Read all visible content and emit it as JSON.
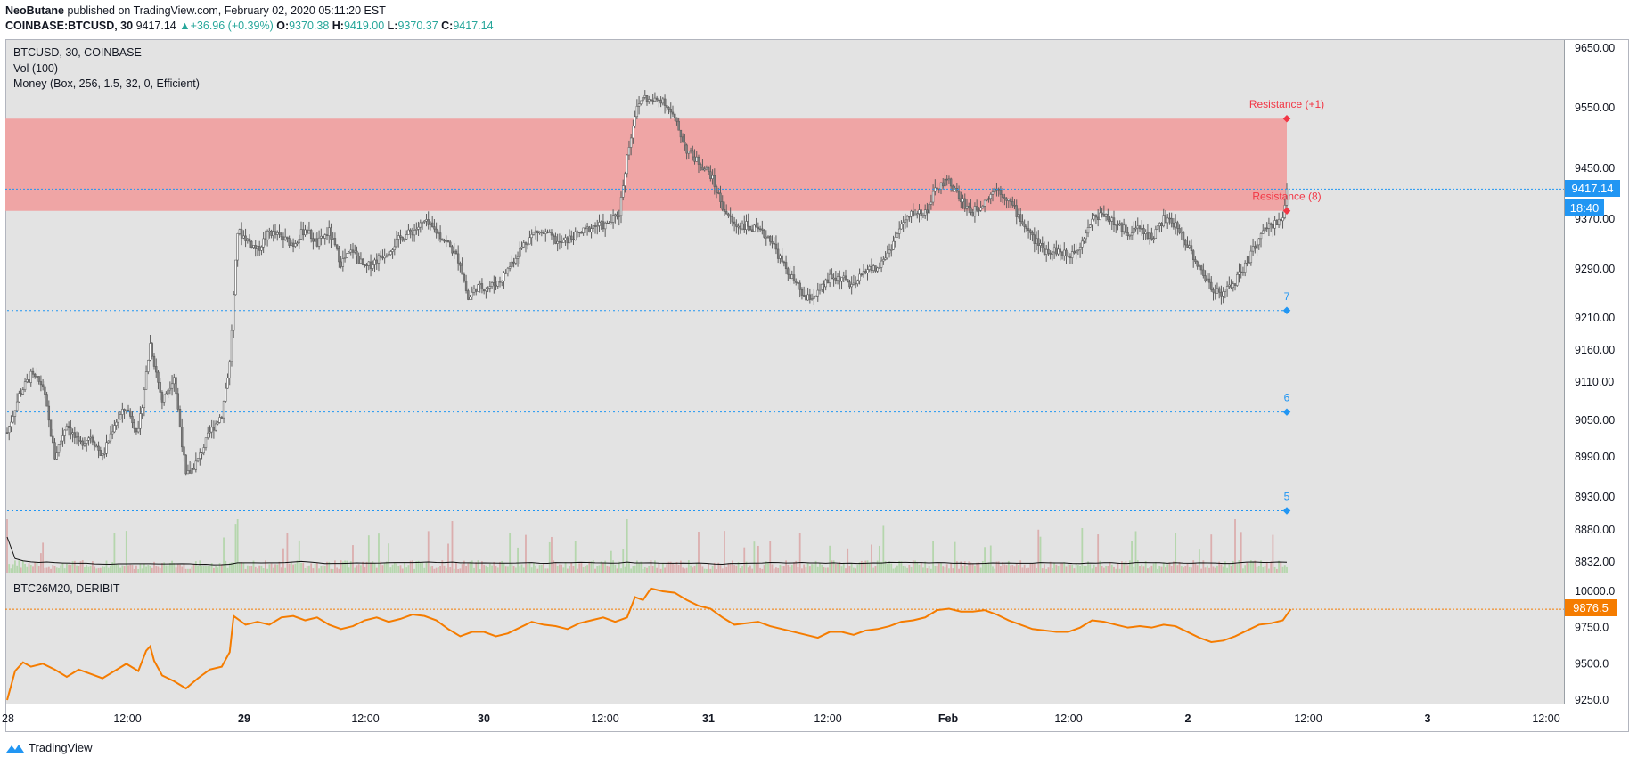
{
  "header": {
    "author": "NeoButane",
    "published_text": "published on TradingView.com, February 02, 2020 05:11:20 EST",
    "symbol": "COINBASE:BTCUSD, 30",
    "last": "9417.14",
    "change": "+36.96 (+0.39%)",
    "o_label": "O:",
    "o": "9370.38",
    "h_label": "H:",
    "h": "9419.00",
    "l_label": "L:",
    "l": "9370.37",
    "c_label": "C:",
    "c": "9417.14"
  },
  "legend": {
    "symbol": "BTCUSD, 30, COINBASE",
    "vol": "Vol (100)",
    "money": "Money (Box, 256, 1.5, 32, 0, Efficient)",
    "sub_symbol": "BTC26M20, DERIBIT"
  },
  "annotations": {
    "res_top": "Resistance (+1)",
    "res_8": "Resistance (8)",
    "lvl_7": "7",
    "lvl_6": "6",
    "lvl_5": "5"
  },
  "badges": {
    "price": "9417.14",
    "countdown": "18:40",
    "sub_price": "9876.5"
  },
  "footer": {
    "brand": "TradingView"
  },
  "colors": {
    "background": "#e3e3e3",
    "resistance_zone": "#efa5a5",
    "support_line": "#2196f3",
    "resistance_marker": "#f23645",
    "candle_up": "#ffffff",
    "candle_down": "#808080",
    "volume_up": "#b5d6ad",
    "volume_down": "#dbaeae",
    "futures_line": "#f57c00",
    "price_badge": "#2196f3",
    "futures_badge": "#f57c00"
  },
  "chart_data": [
    {
      "type": "candlestick",
      "title": "BTCUSD, 30, COINBASE",
      "y_axis_ticks": [
        "9650.00",
        "9550.00",
        "9450.00",
        "9370.00",
        "9290.00",
        "9210.00",
        "9160.00",
        "9110.00",
        "9050.00",
        "8990.00",
        "8930.00",
        "8880.00",
        "8832.00"
      ],
      "x_axis_ticks": [
        "28",
        "12:00",
        "29",
        "12:00",
        "30",
        "12:00",
        "31",
        "12:00",
        "Feb",
        "12:00",
        "2",
        "12:00",
        "3",
        "12:00"
      ],
      "ylim": [
        8830,
        9665
      ],
      "resistance_zone": [
        9383,
        9532
      ],
      "horizontal_levels": [
        {
          "label": "Resistance (+1)",
          "value": 9532
        },
        {
          "label": "Resistance (8)",
          "value": 9383
        },
        {
          "label": "7",
          "value": 9222
        },
        {
          "label": "6",
          "value": 9063
        },
        {
          "label": "5",
          "value": 8909
        }
      ],
      "current_price_line": 9417.14,
      "close_path": [
        [
          0,
          9030
        ],
        [
          6,
          9090
        ],
        [
          12,
          9120
        ],
        [
          18,
          9105
        ],
        [
          24,
          8990
        ],
        [
          30,
          9045
        ],
        [
          36,
          9010
        ],
        [
          42,
          9025
        ],
        [
          48,
          8990
        ],
        [
          54,
          9045
        ],
        [
          60,
          9070
        ],
        [
          66,
          9030
        ],
        [
          72,
          9170
        ],
        [
          78,
          9080
        ],
        [
          84,
          9120
        ],
        [
          90,
          8960
        ],
        [
          96,
          8985
        ],
        [
          102,
          9030
        ],
        [
          108,
          9060
        ],
        [
          112,
          9140
        ],
        [
          116,
          9350
        ],
        [
          120,
          9340
        ],
        [
          126,
          9320
        ],
        [
          132,
          9350
        ],
        [
          138,
          9340
        ],
        [
          144,
          9330
        ],
        [
          150,
          9355
        ],
        [
          156,
          9330
        ],
        [
          162,
          9350
        ],
        [
          168,
          9300
        ],
        [
          174,
          9320
        ],
        [
          180,
          9290
        ],
        [
          186,
          9305
        ],
        [
          192,
          9320
        ],
        [
          198,
          9340
        ],
        [
          204,
          9350
        ],
        [
          210,
          9365
        ],
        [
          216,
          9350
        ],
        [
          222,
          9330
        ],
        [
          228,
          9300
        ],
        [
          232,
          9240
        ],
        [
          236,
          9260
        ],
        [
          242,
          9260
        ],
        [
          248,
          9270
        ],
        [
          254,
          9300
        ],
        [
          260,
          9330
        ],
        [
          266,
          9350
        ],
        [
          272,
          9345
        ],
        [
          278,
          9330
        ],
        [
          284,
          9340
        ],
        [
          290,
          9350
        ],
        [
          296,
          9360
        ],
        [
          302,
          9360
        ],
        [
          308,
          9380
        ],
        [
          312,
          9470
        ],
        [
          316,
          9540
        ],
        [
          320,
          9570
        ],
        [
          324,
          9560
        ],
        [
          330,
          9565
        ],
        [
          336,
          9530
        ],
        [
          342,
          9480
        ],
        [
          348,
          9460
        ],
        [
          354,
          9440
        ],
        [
          360,
          9390
        ],
        [
          366,
          9360
        ],
        [
          372,
          9360
        ],
        [
          378,
          9350
        ],
        [
          384,
          9340
        ],
        [
          390,
          9300
        ],
        [
          396,
          9270
        ],
        [
          402,
          9240
        ],
        [
          408,
          9250
        ],
        [
          414,
          9275
        ],
        [
          420,
          9275
        ],
        [
          426,
          9260
        ],
        [
          432,
          9290
        ],
        [
          438,
          9290
        ],
        [
          444,
          9320
        ],
        [
          450,
          9360
        ],
        [
          456,
          9380
        ],
        [
          462,
          9380
        ],
        [
          468,
          9420
        ],
        [
          474,
          9430
        ],
        [
          480,
          9400
        ],
        [
          486,
          9380
        ],
        [
          492,
          9400
        ],
        [
          498,
          9420
        ],
        [
          504,
          9400
        ],
        [
          510,
          9370
        ],
        [
          516,
          9340
        ],
        [
          522,
          9320
        ],
        [
          528,
          9320
        ],
        [
          534,
          9310
        ],
        [
          540,
          9330
        ],
        [
          546,
          9370
        ],
        [
          552,
          9380
        ],
        [
          558,
          9360
        ],
        [
          564,
          9350
        ],
        [
          570,
          9355
        ],
        [
          576,
          9340
        ],
        [
          582,
          9370
        ],
        [
          588,
          9360
        ],
        [
          594,
          9330
        ],
        [
          600,
          9290
        ],
        [
          606,
          9260
        ],
        [
          612,
          9250
        ],
        [
          618,
          9270
        ],
        [
          624,
          9300
        ],
        [
          630,
          9340
        ],
        [
          636,
          9360
        ],
        [
          642,
          9370
        ],
        [
          644,
          9417
        ]
      ]
    },
    {
      "type": "bar",
      "title": "Vol (100)",
      "note": "volume histogram with moving average line"
    },
    {
      "type": "line",
      "title": "BTC26M20, DERIBIT",
      "y_axis_ticks": [
        "10000.0",
        "9750.0",
        "9500.0",
        "9250.0"
      ],
      "ylim": [
        9250,
        10000
      ],
      "last_value": 9876.5,
      "series": [
        {
          "values": [
            [
              0,
              9250
            ],
            [
              4,
              9450
            ],
            [
              8,
              9510
            ],
            [
              12,
              9480
            ],
            [
              18,
              9500
            ],
            [
              24,
              9460
            ],
            [
              30,
              9410
            ],
            [
              36,
              9460
            ],
            [
              42,
              9430
            ],
            [
              48,
              9400
            ],
            [
              54,
              9450
            ],
            [
              60,
              9500
            ],
            [
              66,
              9450
            ],
            [
              70,
              9590
            ],
            [
              72,
              9620
            ],
            [
              74,
              9520
            ],
            [
              78,
              9420
            ],
            [
              84,
              9380
            ],
            [
              90,
              9330
            ],
            [
              96,
              9400
            ],
            [
              102,
              9460
            ],
            [
              108,
              9480
            ],
            [
              112,
              9580
            ],
            [
              114,
              9830
            ],
            [
              120,
              9770
            ],
            [
              126,
              9790
            ],
            [
              132,
              9770
            ],
            [
              138,
              9820
            ],
            [
              144,
              9830
            ],
            [
              150,
              9800
            ],
            [
              156,
              9820
            ],
            [
              162,
              9770
            ],
            [
              168,
              9740
            ],
            [
              174,
              9760
            ],
            [
              180,
              9800
            ],
            [
              186,
              9820
            ],
            [
              192,
              9790
            ],
            [
              198,
              9810
            ],
            [
              204,
              9840
            ],
            [
              210,
              9830
            ],
            [
              216,
              9800
            ],
            [
              222,
              9740
            ],
            [
              228,
              9690
            ],
            [
              234,
              9720
            ],
            [
              240,
              9720
            ],
            [
              246,
              9690
            ],
            [
              252,
              9710
            ],
            [
              258,
              9750
            ],
            [
              264,
              9790
            ],
            [
              270,
              9770
            ],
            [
              276,
              9760
            ],
            [
              282,
              9740
            ],
            [
              288,
              9780
            ],
            [
              294,
              9800
            ],
            [
              300,
              9820
            ],
            [
              306,
              9790
            ],
            [
              312,
              9820
            ],
            [
              316,
              9960
            ],
            [
              320,
              9940
            ],
            [
              324,
              10020
            ],
            [
              330,
              10000
            ],
            [
              336,
              9990
            ],
            [
              342,
              9940
            ],
            [
              348,
              9900
            ],
            [
              354,
              9880
            ],
            [
              360,
              9820
            ],
            [
              366,
              9770
            ],
            [
              372,
              9780
            ],
            [
              378,
              9790
            ],
            [
              384,
              9760
            ],
            [
              390,
              9740
            ],
            [
              396,
              9720
            ],
            [
              402,
              9700
            ],
            [
              408,
              9680
            ],
            [
              414,
              9720
            ],
            [
              420,
              9720
            ],
            [
              426,
              9700
            ],
            [
              432,
              9730
            ],
            [
              438,
              9740
            ],
            [
              444,
              9760
            ],
            [
              450,
              9790
            ],
            [
              456,
              9800
            ],
            [
              462,
              9820
            ],
            [
              468,
              9870
            ],
            [
              474,
              9880
            ],
            [
              480,
              9860
            ],
            [
              486,
              9860
            ],
            [
              492,
              9870
            ],
            [
              498,
              9840
            ],
            [
              504,
              9800
            ],
            [
              510,
              9770
            ],
            [
              516,
              9740
            ],
            [
              522,
              9730
            ],
            [
              528,
              9720
            ],
            [
              534,
              9720
            ],
            [
              540,
              9750
            ],
            [
              546,
              9800
            ],
            [
              552,
              9790
            ],
            [
              558,
              9770
            ],
            [
              564,
              9750
            ],
            [
              570,
              9760
            ],
            [
              576,
              9750
            ],
            [
              582,
              9770
            ],
            [
              588,
              9760
            ],
            [
              594,
              9720
            ],
            [
              600,
              9680
            ],
            [
              606,
              9650
            ],
            [
              612,
              9660
            ],
            [
              618,
              9690
            ],
            [
              624,
              9730
            ],
            [
              630,
              9770
            ],
            [
              636,
              9780
            ],
            [
              642,
              9800
            ],
            [
              646,
              9876.5
            ]
          ]
        }
      ]
    }
  ]
}
